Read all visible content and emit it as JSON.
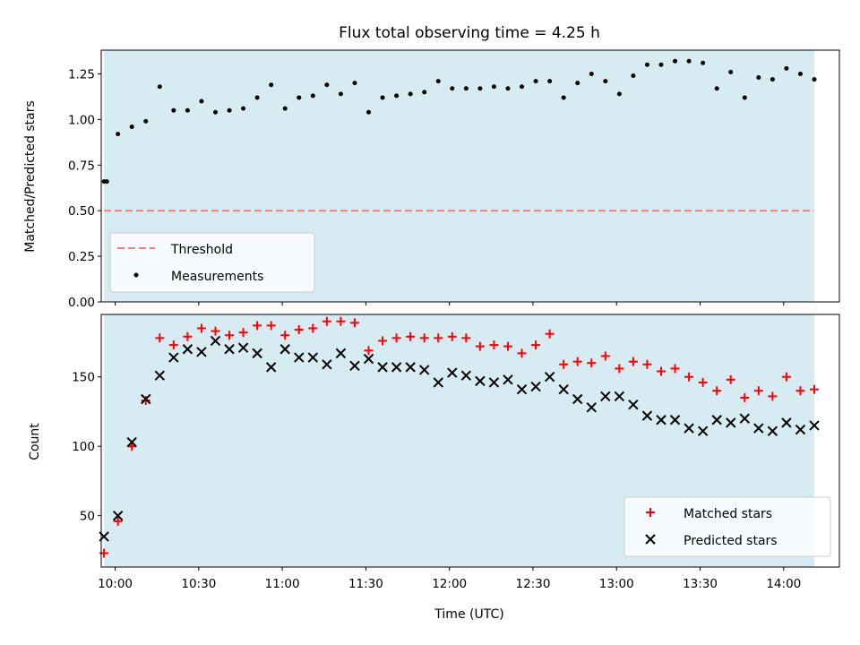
{
  "figure": {
    "title": "Flux total observing time = 4.25 h",
    "xlabel": "Time (UTC)"
  },
  "colors": {
    "shade": "#add8e6",
    "threshold": "#f08080",
    "measurements": "#000000",
    "matched": "#ff0000",
    "predicted": "#000000"
  },
  "chart_data": [
    {
      "type": "scatter",
      "panel": "top",
      "title": "Flux total observing time = 4.25 h",
      "xlabel": "",
      "ylabel": "Matched/Predicted stars",
      "xlim": [
        "09:55",
        "14:20"
      ],
      "ylim": [
        0.0,
        1.38
      ],
      "yticks": [
        0.0,
        0.25,
        0.5,
        0.75,
        1.0,
        1.25
      ],
      "ytick_labels": [
        "0.00",
        "0.25",
        "0.50",
        "0.75",
        "1.00",
        "1.25"
      ],
      "xticks": [
        "10:00",
        "10:30",
        "11:00",
        "11:30",
        "12:00",
        "12:30",
        "13:00",
        "13:30",
        "14:00"
      ],
      "shaded_span": [
        "09:56",
        "14:11"
      ],
      "threshold": {
        "label": "Threshold",
        "value": 0.5,
        "color": "#f08080",
        "style": "dashed"
      },
      "legend_position": "lower-left",
      "series": [
        {
          "name": "Measurements",
          "marker": "dot",
          "color": "#000000",
          "x": [
            "09:56",
            "09:57",
            "10:01",
            "10:06",
            "10:11",
            "10:16",
            "10:21",
            "10:26",
            "10:31",
            "10:36",
            "10:41",
            "10:46",
            "10:51",
            "10:56",
            "11:01",
            "11:06",
            "11:11",
            "11:16",
            "11:21",
            "11:26",
            "11:31",
            "11:36",
            "11:41",
            "11:46",
            "11:51",
            "11:56",
            "12:01",
            "12:06",
            "12:11",
            "12:16",
            "12:21",
            "12:26",
            "12:31",
            "12:36",
            "12:41",
            "12:46",
            "12:51",
            "12:56",
            "13:01",
            "13:06",
            "13:11",
            "13:16",
            "13:21",
            "13:26",
            "13:31",
            "13:36",
            "13:41",
            "13:46",
            "13:51",
            "13:56",
            "14:01",
            "14:06",
            "14:11"
          ],
          "y": [
            0.66,
            0.66,
            0.92,
            0.96,
            0.99,
            1.18,
            1.05,
            1.05,
            1.1,
            1.04,
            1.05,
            1.06,
            1.12,
            1.19,
            1.06,
            1.12,
            1.13,
            1.19,
            1.14,
            1.2,
            1.04,
            1.12,
            1.13,
            1.14,
            1.15,
            1.21,
            1.17,
            1.17,
            1.17,
            1.18,
            1.17,
            1.18,
            1.21,
            1.21,
            1.12,
            1.2,
            1.25,
            1.21,
            1.14,
            1.24,
            1.3,
            1.3,
            1.32,
            1.32,
            1.31,
            1.17,
            1.26,
            1.12,
            1.23,
            1.22,
            1.28,
            1.25,
            1.22
          ]
        }
      ]
    },
    {
      "type": "scatter",
      "panel": "bottom",
      "xlabel": "Time (UTC)",
      "ylabel": "Count",
      "xlim": [
        "09:55",
        "14:20"
      ],
      "ylim": [
        13,
        195
      ],
      "yticks": [
        50,
        100,
        150
      ],
      "ytick_labels": [
        "50",
        "100",
        "150"
      ],
      "xticks": [
        "10:00",
        "10:30",
        "11:00",
        "11:30",
        "12:00",
        "12:30",
        "13:00",
        "13:30",
        "14:00"
      ],
      "xtick_labels": [
        "10:00",
        "10:30",
        "11:00",
        "11:30",
        "12:00",
        "12:30",
        "13:00",
        "13:30",
        "14:00"
      ],
      "shaded_span": [
        "09:56",
        "14:11"
      ],
      "legend_position": "lower-right",
      "series": [
        {
          "name": "Matched stars",
          "marker": "plus",
          "color": "#ff0000",
          "x": [
            "09:56",
            "10:01",
            "10:06",
            "10:11",
            "10:16",
            "10:21",
            "10:26",
            "10:31",
            "10:36",
            "10:41",
            "10:46",
            "10:51",
            "10:56",
            "11:01",
            "11:06",
            "11:11",
            "11:16",
            "11:21",
            "11:26",
            "11:31",
            "11:36",
            "11:41",
            "11:46",
            "11:51",
            "11:56",
            "12:01",
            "12:06",
            "12:11",
            "12:16",
            "12:21",
            "12:26",
            "12:31",
            "12:36",
            "12:41",
            "12:46",
            "12:51",
            "12:56",
            "13:01",
            "13:06",
            "13:11",
            "13:16",
            "13:21",
            "13:26",
            "13:31",
            "13:36",
            "13:41",
            "13:46",
            "13:51",
            "13:56",
            "14:01",
            "14:06",
            "14:11"
          ],
          "y": [
            23,
            46,
            100,
            133,
            178,
            173,
            179,
            185,
            183,
            180,
            182,
            187,
            187,
            180,
            184,
            185,
            190,
            190,
            189,
            169,
            176,
            178,
            179,
            178,
            178,
            179,
            178,
            172,
            173,
            172,
            167,
            173,
            181,
            159,
            161,
            160,
            165,
            156,
            161,
            159,
            154,
            156,
            150,
            146,
            140,
            148,
            135,
            140,
            136,
            150,
            140,
            141
          ]
        },
        {
          "name": "Predicted stars",
          "marker": "x",
          "color": "#000000",
          "x": [
            "09:56",
            "10:01",
            "10:06",
            "10:11",
            "10:16",
            "10:21",
            "10:26",
            "10:31",
            "10:36",
            "10:41",
            "10:46",
            "10:51",
            "10:56",
            "11:01",
            "11:06",
            "11:11",
            "11:16",
            "11:21",
            "11:26",
            "11:31",
            "11:36",
            "11:41",
            "11:46",
            "11:51",
            "11:56",
            "12:01",
            "12:06",
            "12:11",
            "12:16",
            "12:21",
            "12:26",
            "12:31",
            "12:36",
            "12:41",
            "12:46",
            "12:51",
            "12:56",
            "13:01",
            "13:06",
            "13:11",
            "13:16",
            "13:21",
            "13:26",
            "13:31",
            "13:36",
            "13:41",
            "13:46",
            "13:51",
            "13:56",
            "14:01",
            "14:06",
            "14:11"
          ],
          "y": [
            35,
            50,
            103,
            134,
            151,
            164,
            170,
            168,
            176,
            170,
            171,
            167,
            157,
            170,
            164,
            164,
            159,
            167,
            158,
            163,
            157,
            157,
            157,
            155,
            146,
            153,
            151,
            147,
            146,
            148,
            141,
            143,
            150,
            141,
            134,
            128,
            136,
            136,
            130,
            122,
            119,
            119,
            113,
            111,
            119,
            117,
            120,
            113,
            111,
            117,
            112,
            115
          ]
        }
      ]
    }
  ]
}
